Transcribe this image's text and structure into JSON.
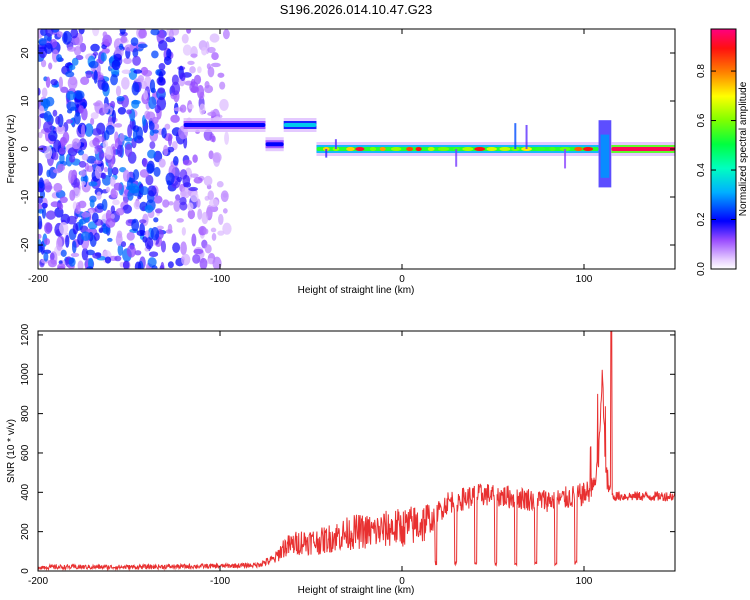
{
  "chart_data": [
    {
      "type": "heatmap",
      "title": "S196.2026.014.10.47.G23",
      "xlabel": "Height of straight line (km)",
      "ylabel": "Frequency (Hz)",
      "xlim": [
        -200,
        150
      ],
      "ylim": [
        -25,
        25
      ],
      "xticks": [
        -200,
        -100,
        0,
        100
      ],
      "yticks": [
        -20,
        -10,
        0,
        10,
        20
      ],
      "colorbar": {
        "label": "Normalized spectral amplitude",
        "range": [
          0.0,
          0.97
        ],
        "ticks": [
          0.0,
          0.2,
          0.4,
          0.6,
          0.8
        ],
        "colormap": "rainbow"
      },
      "regions": [
        {
          "x_range": [
            -200,
            -120
          ],
          "description": "broadband noise",
          "amplitude": [
            0.0,
            0.25
          ]
        },
        {
          "x_range": [
            -120,
            -75
          ],
          "freq_hz": 5,
          "amplitude": 0.2
        },
        {
          "x_range": [
            -75,
            -65
          ],
          "freq_hz": 1,
          "amplitude": 0.2
        },
        {
          "x_range": [
            -65,
            -47
          ],
          "freq_hz": 5,
          "amplitude": 0.35
        },
        {
          "x_range": [
            -47,
            108
          ],
          "freq_hz": 0,
          "amplitude": 0.55,
          "peaks_up_to": 0.97
        },
        {
          "x_range": [
            108,
            115
          ],
          "description": "transition spread",
          "amplitude": 0.3
        },
        {
          "x_range": [
            115,
            150
          ],
          "freq_hz": 0,
          "amplitude": 0.97
        }
      ]
    },
    {
      "type": "line",
      "xlabel": "Height of straight line (km)",
      "ylabel": "SNR (10 * v/v)",
      "xlim": [
        -200,
        150
      ],
      "ylim": [
        0,
        1220
      ],
      "xticks": [
        -200,
        -100,
        0,
        100
      ],
      "yticks": [
        0,
        200,
        400,
        600,
        800,
        1000,
        1200
      ],
      "series_color": "#e83030",
      "series": [
        {
          "name": "SNR",
          "x": [
            -200,
            -150,
            -100,
            -80,
            -70,
            -65,
            -55,
            -45,
            -35,
            -25,
            -15,
            -5,
            0,
            10,
            18,
            20,
            25,
            35,
            45,
            55,
            65,
            75,
            85,
            95,
            100,
            105,
            108,
            110,
            112,
            115,
            120,
            130,
            140,
            150
          ],
          "y": [
            20,
            20,
            25,
            30,
            60,
            120,
            150,
            150,
            180,
            200,
            200,
            220,
            220,
            240,
            260,
            300,
            350,
            370,
            390,
            380,
            370,
            360,
            360,
            380,
            390,
            420,
            560,
            1000,
            500,
            380,
            380,
            380,
            380,
            380
          ]
        }
      ]
    }
  ]
}
